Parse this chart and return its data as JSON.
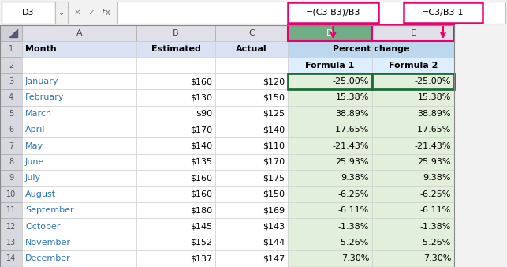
{
  "formula_bar_cell": "D3",
  "formula1_formula": "=(C3-B3)/B3",
  "formula2_formula": "=C3/B3-1",
  "months": [
    "January",
    "February",
    "March",
    "April",
    "May",
    "June",
    "July",
    "August",
    "September",
    "October",
    "November",
    "December"
  ],
  "estimated": [
    "$160",
    "$130",
    "$90",
    "$170",
    "$140",
    "$135",
    "$160",
    "$160",
    "$180",
    "$145",
    "$152",
    "$137"
  ],
  "actual": [
    "$120",
    "$150",
    "$125",
    "$140",
    "$110",
    "$170",
    "$175",
    "$150",
    "$169",
    "$143",
    "$144",
    "$147"
  ],
  "formula1": [
    "-25.00%",
    "15.38%",
    "38.89%",
    "-17.65%",
    "-21.43%",
    "25.93%",
    "9.38%",
    "-6.25%",
    "-6.11%",
    "-1.38%",
    "-5.26%",
    "7.30%"
  ],
  "formula2": [
    "-25.00%",
    "15.38%",
    "38.89%",
    "-17.65%",
    "-21.43%",
    "25.93%",
    "9.38%",
    "-6.25%",
    "-6.11%",
    "-1.38%",
    "-5.26%",
    "7.30%"
  ],
  "dark_green": "#1F6B3A",
  "pink": "#E8006E",
  "month_color": "#2E75B6",
  "bg_gray": "#F2F2F2",
  "bg_col_hdr": "#E0E0E8",
  "bg_col_hdr_selected": "#70AD84",
  "bg_row_hdr": "#D8D8E0",
  "bg_row1": "#D9E1F2",
  "bg_row1_de": "#BDD7EE",
  "bg_de_data": "#E2EFDA",
  "bg_row2_de": "#DDEEFF",
  "bg_white": "#FFFFFF",
  "border_light": "#C0C0C0",
  "border_dark": "#999999"
}
